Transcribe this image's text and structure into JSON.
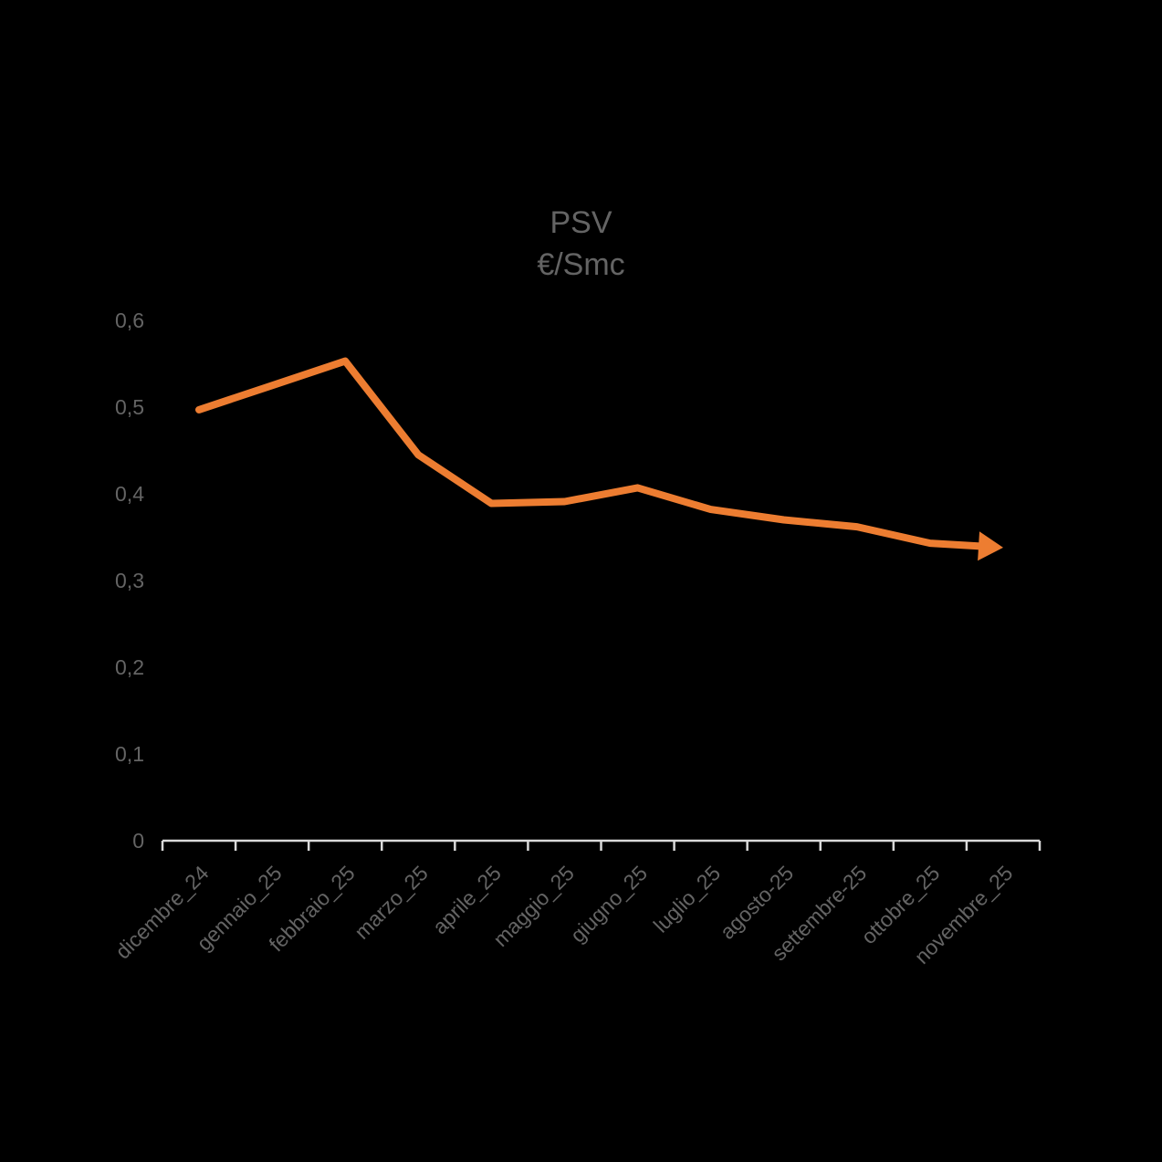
{
  "page": {
    "background_color": "#000000"
  },
  "chart_data": {
    "type": "line",
    "title": "PSV",
    "subtitle": "€/Smc",
    "categories": [
      "dicembre_24",
      "gennaio_25",
      "febbraio_25",
      "marzo_25",
      "aprile_25",
      "maggio_25",
      "giugno_25",
      "luglio_25",
      "agosto-25",
      "settembre-25",
      "ottobre_25",
      "novembre_25"
    ],
    "series": [
      {
        "name": "PSV",
        "color": "#ED7D31",
        "values": [
          0.497,
          0.525,
          0.553,
          0.445,
          0.389,
          0.391,
          0.407,
          0.382,
          0.37,
          0.362,
          0.343,
          0.338
        ]
      }
    ],
    "ylim": [
      0,
      0.6
    ],
    "y_tick_step": 0.1,
    "y_tick_labels": [
      "0",
      "0,1",
      "0,2",
      "0,3",
      "0,4",
      "0,5",
      "0,6"
    ],
    "x_label_rotation_deg": 45,
    "grid": false,
    "legend": "none",
    "line_end": "arrow",
    "axis_color": "#D9D9D9",
    "text_color": "#646464"
  }
}
